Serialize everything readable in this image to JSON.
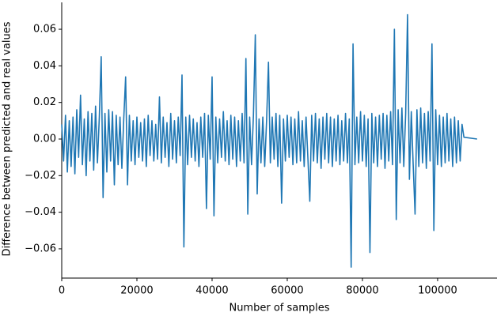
{
  "chart_data": {
    "type": "line",
    "xlabel": "Number of samples",
    "ylabel": "Difference between predicted and real values",
    "xlim": [
      0,
      115800
    ],
    "ylim": [
      -0.076,
      0.0747
    ],
    "xticks": [
      0,
      20000,
      40000,
      60000,
      80000,
      100000
    ],
    "yticks": [
      {
        "value": -0.06,
        "label": "−0.06"
      },
      {
        "value": -0.04,
        "label": "−0.04"
      },
      {
        "value": -0.02,
        "label": "−0.02"
      },
      {
        "value": 0,
        "label": "0.00"
      },
      {
        "value": 0.02,
        "label": "0.02"
      },
      {
        "value": 0.04,
        "label": "0.04"
      },
      {
        "value": 0.06,
        "label": "0.06"
      }
    ],
    "grid": false,
    "series": [
      {
        "color": "#1f77b4",
        "x": [
          0,
          500,
          1000,
          1500,
          2000,
          2500,
          3000,
          3500,
          4000,
          4500,
          5000,
          5500,
          6000,
          6500,
          7000,
          7500,
          8000,
          8500,
          9000,
          9500,
          10000,
          10500,
          11000,
          11500,
          12000,
          12500,
          13000,
          13500,
          14000,
          14500,
          15000,
          15500,
          16000,
          16500,
          17000,
          17500,
          18000,
          18500,
          19000,
          19500,
          20000,
          20500,
          21000,
          21500,
          22000,
          22500,
          23000,
          23500,
          24000,
          24500,
          25000,
          25500,
          26000,
          26500,
          27000,
          27500,
          28000,
          28500,
          29000,
          29500,
          30000,
          30500,
          31000,
          31500,
          32000,
          32500,
          33000,
          33500,
          34000,
          34500,
          35000,
          35500,
          36000,
          36500,
          37000,
          37500,
          38000,
          38500,
          39000,
          39500,
          40000,
          40500,
          41000,
          41500,
          42000,
          42500,
          43000,
          43500,
          44000,
          44500,
          45000,
          45500,
          46000,
          46500,
          47000,
          47500,
          48000,
          48500,
          49000,
          49500,
          50000,
          50500,
          51000,
          51500,
          52000,
          52500,
          53000,
          53500,
          54000,
          54500,
          55000,
          55500,
          56000,
          56500,
          57000,
          57500,
          58000,
          58500,
          59000,
          59500,
          60000,
          60500,
          61000,
          61500,
          62000,
          62500,
          63000,
          63500,
          64000,
          64500,
          65000,
          65500,
          66000,
          66500,
          67000,
          67500,
          68000,
          68500,
          69000,
          69500,
          70000,
          70500,
          71000,
          71500,
          72000,
          72500,
          73000,
          73500,
          74000,
          74500,
          75000,
          75500,
          76000,
          76500,
          77000,
          77500,
          78000,
          78500,
          79000,
          79500,
          80000,
          80500,
          81000,
          81500,
          82000,
          82500,
          83000,
          83500,
          84000,
          84500,
          85000,
          85500,
          86000,
          86500,
          87000,
          87500,
          88000,
          88500,
          89000,
          89500,
          90000,
          90500,
          91000,
          91500,
          92000,
          92500,
          93000,
          93500,
          94000,
          94500,
          95000,
          95500,
          96000,
          96500,
          97000,
          97500,
          98000,
          98500,
          99000,
          99500,
          100000,
          100500,
          101000,
          101500,
          102000,
          102500,
          103000,
          103500,
          104000,
          104500,
          105000,
          105500,
          106000,
          106500,
          107000,
          110500
        ],
        "values": [
          0.008,
          -0.012,
          0.013,
          -0.018,
          0.01,
          -0.015,
          0.012,
          -0.019,
          0.016,
          -0.01,
          0.024,
          -0.014,
          0.011,
          -0.02,
          0.015,
          -0.012,
          0.014,
          -0.017,
          0.018,
          -0.013,
          0.012,
          0.045,
          -0.032,
          0.014,
          -0.018,
          0.016,
          -0.012,
          0.015,
          -0.025,
          0.013,
          -0.014,
          0.012,
          -0.016,
          0.011,
          0.034,
          -0.025,
          0.013,
          -0.012,
          0.01,
          -0.014,
          0.012,
          -0.01,
          0.009,
          -0.012,
          0.011,
          -0.015,
          0.013,
          -0.009,
          0.01,
          -0.012,
          0.008,
          -0.011,
          0.023,
          -0.013,
          0.012,
          -0.01,
          0.009,
          -0.015,
          0.014,
          -0.011,
          0.01,
          -0.013,
          0.012,
          -0.009,
          0.035,
          -0.059,
          0.012,
          -0.014,
          0.013,
          -0.01,
          0.011,
          -0.012,
          0.009,
          -0.015,
          0.012,
          -0.01,
          0.014,
          -0.038,
          0.013,
          -0.011,
          0.034,
          -0.042,
          0.012,
          -0.013,
          0.011,
          -0.01,
          0.015,
          -0.012,
          0.01,
          -0.014,
          0.013,
          -0.011,
          0.012,
          -0.015,
          0.01,
          -0.012,
          0.014,
          -0.013,
          0.044,
          -0.041,
          0.012,
          -0.014,
          0.013,
          0.057,
          -0.03,
          0.011,
          -0.013,
          0.012,
          -0.015,
          0.01,
          0.042,
          -0.013,
          0.012,
          -0.011,
          0.014,
          -0.015,
          0.013,
          -0.035,
          0.011,
          -0.012,
          0.013,
          -0.01,
          0.012,
          -0.014,
          0.011,
          -0.013,
          0.015,
          -0.012,
          0.01,
          -0.015,
          0.012,
          -0.011,
          -0.034,
          0.013,
          -0.012,
          0.014,
          -0.013,
          0.011,
          -0.016,
          0.012,
          -0.011,
          0.014,
          -0.013,
          0.012,
          -0.015,
          0.011,
          -0.012,
          0.013,
          -0.014,
          0.01,
          -0.012,
          0.014,
          -0.013,
          0.011,
          -0.07,
          0.052,
          -0.014,
          0.012,
          -0.013,
          0.015,
          -0.012,
          0.013,
          -0.015,
          0.011,
          -0.062,
          0.014,
          -0.013,
          0.012,
          -0.015,
          0.013,
          -0.011,
          0.014,
          -0.016,
          0.013,
          -0.012,
          0.015,
          -0.014,
          0.06,
          -0.044,
          0.016,
          -0.013,
          0.017,
          -0.015,
          0.014,
          0.068,
          -0.022,
          0.015,
          -0.014,
          -0.041,
          0.016,
          -0.015,
          0.017,
          -0.013,
          0.014,
          -0.016,
          0.015,
          -0.012,
          0.052,
          -0.05,
          0.016,
          -0.014,
          0.013,
          -0.015,
          0.012,
          -0.013,
          0.014,
          -0.012,
          0.011,
          -0.015,
          0.012,
          -0.013,
          0.01,
          -0.012,
          0.008,
          0.001,
          0.0
        ]
      }
    ]
  }
}
